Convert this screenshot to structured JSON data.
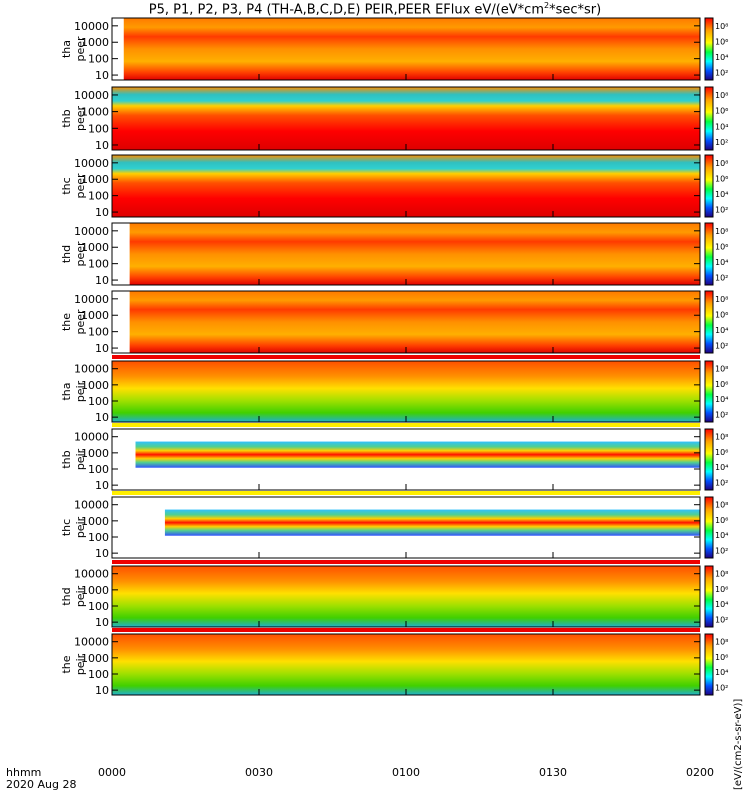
{
  "chart_data": {
    "type": "heatmap",
    "title": "P5, P1, P2, P3, P4 (TH-A,B,C,D,E) PEIR,PEER EFlux eV/(eV*cm",
    "title_sup": "2",
    "title_tail": "*sec*sr)",
    "x_ticks": [
      "0000",
      "0030",
      "0100",
      "0130",
      "0200"
    ],
    "x_label_top": "hhmm",
    "x_label_bottom": "2020 Aug 28",
    "y_ticks": [
      "10",
      "100",
      "1000",
      "10000"
    ],
    "y_scale": "log",
    "ylim": [
      5,
      30000
    ],
    "colorbar_ticks": [
      "10²",
      "10⁴",
      "10⁶",
      "10⁸"
    ],
    "colorbar_unit": "[eV/(cm2-s-sr-eV)]",
    "panels": [
      {
        "probe": "tha",
        "product": "peer",
        "start_frac": 0.02
      },
      {
        "probe": "thb",
        "product": "peer",
        "start_frac": 0.0
      },
      {
        "probe": "thc",
        "product": "peer",
        "start_frac": 0.0
      },
      {
        "probe": "thd",
        "product": "peer",
        "start_frac": 0.03
      },
      {
        "probe": "the",
        "product": "peer",
        "start_frac": 0.03
      },
      {
        "probe": "tha",
        "product": "peir",
        "start_frac": 0.0
      },
      {
        "probe": "thb",
        "product": "peir",
        "start_frac": 0.04
      },
      {
        "probe": "thc",
        "product": "peir",
        "start_frac": 0.09
      },
      {
        "probe": "thd",
        "product": "peir",
        "start_frac": 0.0
      },
      {
        "probe": "the",
        "product": "peir",
        "start_frac": 0.0
      }
    ]
  }
}
